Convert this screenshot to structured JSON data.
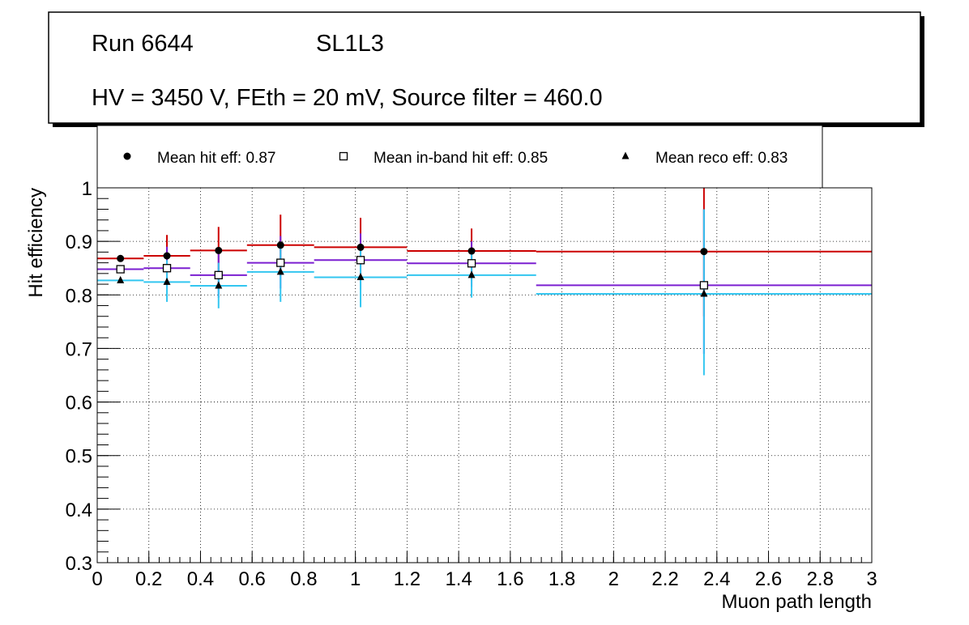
{
  "title_box": {
    "run_label": "Run 6644",
    "layer_label": "SL1L3",
    "conditions": "HV = 3450 V, FEth = 20 mV, Source filter = 460.0"
  },
  "chart_data": {
    "type": "scatter",
    "xlabel": "Muon path length",
    "ylabel": "Hit efficiency",
    "xlim": [
      0,
      3
    ],
    "ylim": [
      0.3,
      1.0
    ],
    "grid": true,
    "legend_position": "top",
    "x_ticks": [
      "0",
      "0.2",
      "0.4",
      "0.6",
      "0.8",
      "1",
      "1.2",
      "1.4",
      "1.6",
      "1.8",
      "2",
      "2.2",
      "2.4",
      "2.6",
      "2.8",
      "3"
    ],
    "y_ticks": [
      "0.3",
      "0.4",
      "0.5",
      "0.6",
      "0.7",
      "0.8",
      "0.9",
      "1"
    ],
    "series": [
      {
        "name": "Mean hit  eff: 0.87",
        "marker": "circle",
        "color": "#cc0000",
        "points": [
          {
            "x": 0.09,
            "xlo": 0.0,
            "xhi": 0.18,
            "y": 0.868,
            "ylo": 0.868,
            "yhi": 0.868
          },
          {
            "x": 0.27,
            "xlo": 0.18,
            "xhi": 0.36,
            "y": 0.873,
            "ylo": 0.838,
            "yhi": 0.912
          },
          {
            "x": 0.47,
            "xlo": 0.36,
            "xhi": 0.58,
            "y": 0.883,
            "ylo": 0.84,
            "yhi": 0.927
          },
          {
            "x": 0.71,
            "xlo": 0.58,
            "xhi": 0.84,
            "y": 0.893,
            "ylo": 0.836,
            "yhi": 0.95
          },
          {
            "x": 1.02,
            "xlo": 0.84,
            "xhi": 1.2,
            "y": 0.889,
            "ylo": 0.834,
            "yhi": 0.944
          },
          {
            "x": 1.45,
            "xlo": 1.2,
            "xhi": 1.7,
            "y": 0.882,
            "ylo": 0.84,
            "yhi": 0.924
          },
          {
            "x": 2.35,
            "xlo": 1.7,
            "xhi": 3.0,
            "y": 0.881,
            "ylo": 0.76,
            "yhi": 1.0
          }
        ]
      },
      {
        "name": "Mean in-band hit eff: 0.85",
        "marker": "open-square",
        "color": "#7b1fd1",
        "points": [
          {
            "x": 0.09,
            "xlo": 0.0,
            "xhi": 0.18,
            "y": 0.848,
            "ylo": 0.848,
            "yhi": 0.848
          },
          {
            "x": 0.27,
            "xlo": 0.18,
            "xhi": 0.36,
            "y": 0.85,
            "ylo": 0.812,
            "yhi": 0.89
          },
          {
            "x": 0.47,
            "xlo": 0.36,
            "xhi": 0.58,
            "y": 0.837,
            "ylo": 0.795,
            "yhi": 0.88
          },
          {
            "x": 0.71,
            "xlo": 0.58,
            "xhi": 0.84,
            "y": 0.86,
            "ylo": 0.812,
            "yhi": 0.91
          },
          {
            "x": 1.02,
            "xlo": 0.84,
            "xhi": 1.2,
            "y": 0.865,
            "ylo": 0.81,
            "yhi": 0.915
          },
          {
            "x": 1.45,
            "xlo": 1.2,
            "xhi": 1.7,
            "y": 0.859,
            "ylo": 0.815,
            "yhi": 0.9
          },
          {
            "x": 2.35,
            "xlo": 1.7,
            "xhi": 3.0,
            "y": 0.818,
            "ylo": 0.69,
            "yhi": 0.96
          }
        ]
      },
      {
        "name": "Mean reco eff: 0.83",
        "marker": "triangle",
        "color": "#33c6f0",
        "points": [
          {
            "x": 0.09,
            "xlo": 0.0,
            "xhi": 0.18,
            "y": 0.827,
            "ylo": 0.827,
            "yhi": 0.827
          },
          {
            "x": 0.27,
            "xlo": 0.18,
            "xhi": 0.36,
            "y": 0.824,
            "ylo": 0.787,
            "yhi": 0.865
          },
          {
            "x": 0.47,
            "xlo": 0.36,
            "xhi": 0.58,
            "y": 0.817,
            "ylo": 0.775,
            "yhi": 0.86
          },
          {
            "x": 0.71,
            "xlo": 0.58,
            "xhi": 0.84,
            "y": 0.843,
            "ylo": 0.787,
            "yhi": 0.895
          },
          {
            "x": 1.02,
            "xlo": 0.84,
            "xhi": 1.2,
            "y": 0.833,
            "ylo": 0.777,
            "yhi": 0.888
          },
          {
            "x": 1.45,
            "xlo": 1.2,
            "xhi": 1.7,
            "y": 0.837,
            "ylo": 0.795,
            "yhi": 0.88
          },
          {
            "x": 2.35,
            "xlo": 1.7,
            "xhi": 3.0,
            "y": 0.802,
            "ylo": 0.65,
            "yhi": 0.96
          }
        ]
      }
    ]
  }
}
